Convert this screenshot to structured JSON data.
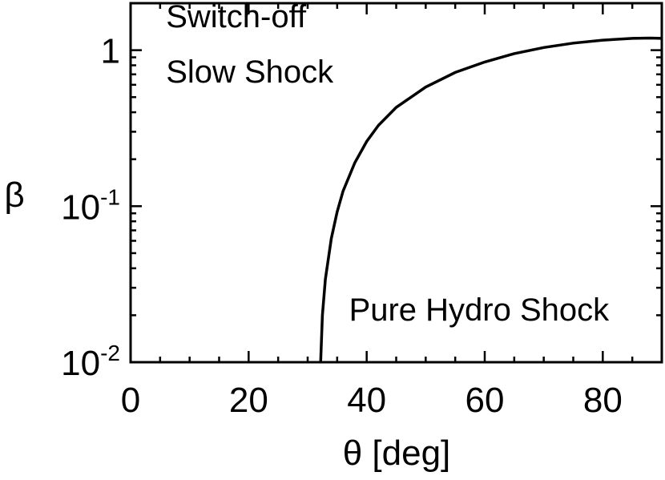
{
  "chart_data": {
    "type": "line",
    "title": "",
    "xlabel": "θ [deg]",
    "ylabel": "β",
    "xlim": [
      0,
      90
    ],
    "ylim": [
      0.01,
      2
    ],
    "yscale": "log",
    "grid": false,
    "x_ticks": [
      {
        "value": 0,
        "label": "0"
      },
      {
        "value": 20,
        "label": "20"
      },
      {
        "value": 40,
        "label": "40"
      },
      {
        "value": 60,
        "label": "60"
      },
      {
        "value": 80,
        "label": "80"
      }
    ],
    "x_minor_step": 5,
    "y_ticks": [
      {
        "value": 1,
        "base": "1",
        "exp": ""
      },
      {
        "value": 0.1,
        "base": "10",
        "exp": "-1"
      },
      {
        "value": 0.01,
        "base": "10",
        "exp": "-2"
      }
    ],
    "series": [
      {
        "name": "",
        "color": "#000000",
        "x": [
          32.2,
          32.5,
          33,
          34,
          35,
          36,
          38,
          40,
          42,
          45,
          50,
          55,
          60,
          65,
          70,
          75,
          80,
          85,
          88,
          90
        ],
        "y": [
          0.01,
          0.02,
          0.034,
          0.062,
          0.092,
          0.125,
          0.19,
          0.26,
          0.33,
          0.43,
          0.58,
          0.72,
          0.84,
          0.95,
          1.04,
          1.11,
          1.16,
          1.19,
          1.195,
          1.19
        ]
      }
    ],
    "annotations": [
      {
        "id": "switch-off",
        "lines": [
          "Switch-off",
          "Slow Shock"
        ],
        "x": 6,
        "y": [
          1.4,
          0.62
        ]
      },
      {
        "id": "pure-hydro",
        "lines": [
          "Pure Hydro Shock"
        ],
        "x": 37,
        "y": [
          0.0185
        ]
      }
    ]
  }
}
